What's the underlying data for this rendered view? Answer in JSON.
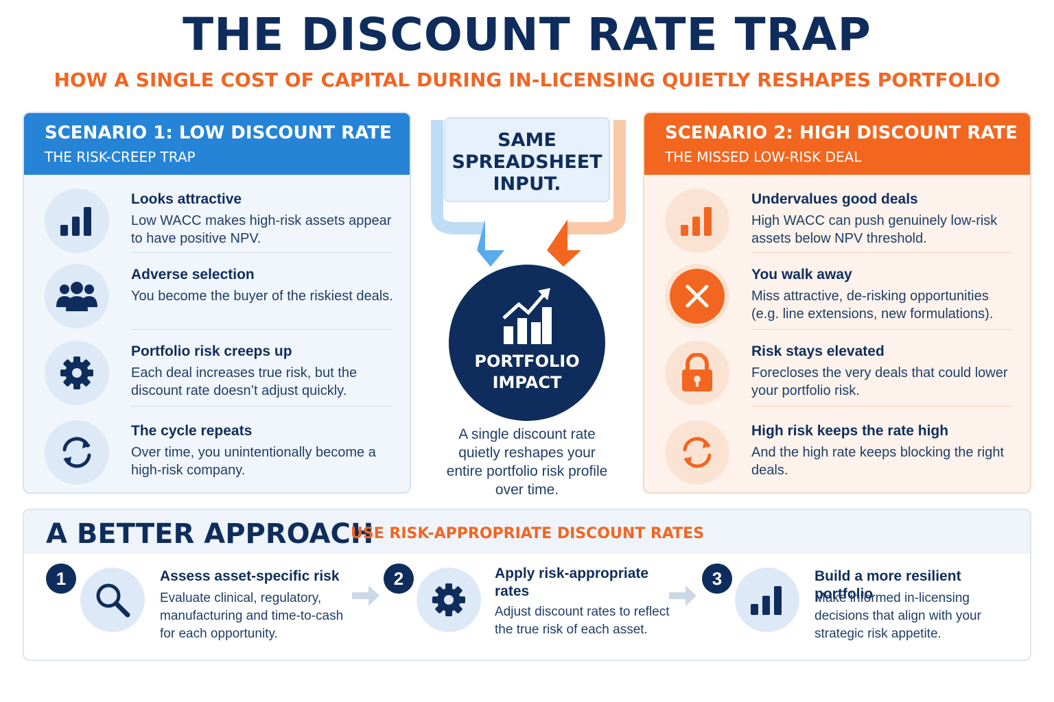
{
  "title": "THE DISCOUNT RATE TRAP",
  "subtitle": "HOW A SINGLE COST OF CAPITAL DURING IN-LICENSING QUIETLY RESHAPES PORTFOLIO",
  "scenario1": {
    "title": "SCENARIO 1: LOW DISCOUNT RATE",
    "subtitle": "THE RISK-CREEP TRAP",
    "items": [
      {
        "title": "Looks attractive",
        "desc": "Low WACC makes high-risk assets appear to have positive NPV.",
        "icon": "bar-chart-icon"
      },
      {
        "title": "Adverse selection",
        "desc": "You become the buyer of the riskiest deals.",
        "icon": "people-icon"
      },
      {
        "title": "Portfolio risk creeps up",
        "desc": "Each deal increases true risk, but the discount rate doesn’t adjust quickly.",
        "icon": "gear-icon"
      },
      {
        "title": "The cycle repeats",
        "desc": "Over time, you unintentionally become a high-risk company.",
        "icon": "cycle-icon"
      }
    ]
  },
  "center": {
    "input_lines": [
      "SAME",
      "SPREADSHEET",
      "INPUT."
    ],
    "impact_lines": [
      "PORTFOLIO",
      "IMPACT"
    ],
    "impact_text": "A single discount rate quietly reshapes your entire portfolio risk profile over time."
  },
  "scenario2": {
    "title": "SCENARIO 2: HIGH DISCOUNT RATE",
    "subtitle": "THE MISSED LOW-RISK DEAL",
    "items": [
      {
        "title": "Undervalues good deals",
        "desc": "High WACC can push genuinely low-risk assets below NPV threshold.",
        "icon": "bar-chart-icon"
      },
      {
        "title": "You walk away",
        "desc": "Miss attractive, de-risking opportunities (e.g. line extensions, new formulations).",
        "icon": "close-icon"
      },
      {
        "title": "Risk stays elevated",
        "desc": "Forecloses the very deals that could lower your portfolio risk.",
        "icon": "lock-icon"
      },
      {
        "title": "High risk keeps the rate high",
        "desc": "And the high rate keeps blocking the right deals.",
        "icon": "cycle-icon"
      }
    ]
  },
  "approach": {
    "title": "A BETTER APPROACH",
    "subtitle": "USE RISK-APPROPRIATE DISCOUNT RATES",
    "steps": [
      {
        "num": "1",
        "title": "Assess asset-specific risk",
        "desc": "Evaluate clinical, regulatory, manufacturing and time-to-cash for each opportunity.",
        "icon": "search-icon"
      },
      {
        "num": "2",
        "title": "Apply risk-appropriate rates",
        "desc": "Adjust discount rates to reflect the true risk of each asset.",
        "icon": "gear-icon"
      },
      {
        "num": "3",
        "title": "Build a more resilient portfolio",
        "desc": "Make informed in-licensing decisions that align with your strategic risk appetite.",
        "icon": "bar-chart-icon"
      }
    ]
  },
  "colors": {
    "navy": "#0f2d5c",
    "blue": "#2684d6",
    "orange": "#f2661f",
    "light_blue": "#dde9f7",
    "light_orange": "#fbe3d4"
  }
}
